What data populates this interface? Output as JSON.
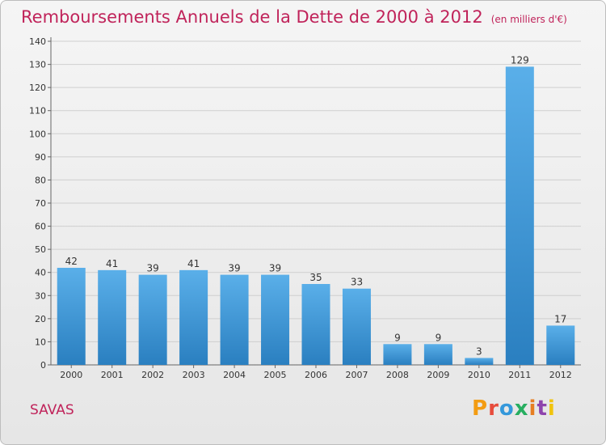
{
  "title": "Remboursements Annuels de la Dette de 2000 à 2012",
  "unit": "(en milliers d'€)",
  "commune": "SAVAS",
  "logo": "Proxiti",
  "colors": {
    "accent": "#c0235a",
    "bar_top": "#5aafe9",
    "bar_bottom": "#2a7fc0",
    "logo_letters": [
      "#f39c12",
      "#e74c3c",
      "#3498db",
      "#27ae60",
      "#e67e22",
      "#8e44ad",
      "#f1c40f"
    ]
  },
  "chart_data": {
    "type": "bar",
    "categories": [
      "2000",
      "2001",
      "2002",
      "2003",
      "2004",
      "2005",
      "2006",
      "2007",
      "2008",
      "2009",
      "2010",
      "2011",
      "2012"
    ],
    "values": [
      42,
      41,
      39,
      41,
      39,
      39,
      35,
      33,
      9,
      9,
      3,
      129,
      17
    ],
    "yticks": [
      0,
      10,
      20,
      30,
      40,
      50,
      60,
      70,
      80,
      90,
      100,
      110,
      120,
      130,
      140
    ],
    "ylim": [
      0,
      140
    ],
    "grid": true,
    "xlabel": "",
    "ylabel": ""
  }
}
